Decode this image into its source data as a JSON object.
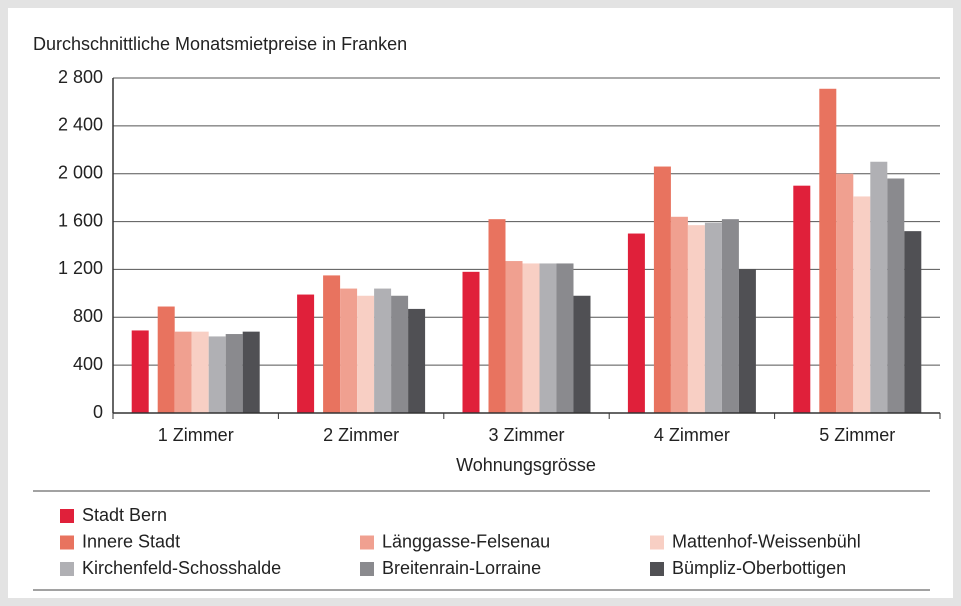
{
  "chart_data": {
    "type": "bar",
    "title": "Durchschnittliche Monatsmietpreise in Franken",
    "x_label": "Wohnungsgrösse",
    "categories": [
      "1 Zimmer",
      "2 Zimmer",
      "3 Zimmer",
      "4 Zimmer",
      "5 Zimmer"
    ],
    "series": [
      {
        "name": "Stadt Bern",
        "color": "#e0203a",
        "values": [
          690,
          990,
          1180,
          1500,
          1900
        ]
      },
      {
        "name": "Innere Stadt",
        "color": "#e8735f",
        "values": [
          890,
          1150,
          1620,
          2060,
          2710
        ]
      },
      {
        "name": "Länggasse-Felsenau",
        "color": "#f0a090",
        "values": [
          680,
          1040,
          1270,
          1640,
          2000
        ]
      },
      {
        "name": "Mattenhof-Weissenbühl",
        "color": "#f8cfc4",
        "values": [
          680,
          980,
          1250,
          1570,
          1810
        ]
      },
      {
        "name": "Kirchenfeld-Schosshalde",
        "color": "#b0b0b4",
        "values": [
          640,
          1040,
          1250,
          1590,
          2100
        ]
      },
      {
        "name": "Breitenrain-Lorraine",
        "color": "#8a8a8e",
        "values": [
          660,
          980,
          1250,
          1620,
          1960
        ]
      },
      {
        "name": "Bümpliz-Oberbottigen",
        "color": "#505054",
        "values": [
          680,
          870,
          980,
          1200,
          1520
        ]
      }
    ],
    "ylim": [
      0,
      2800
    ],
    "yticks": [
      0,
      400,
      800,
      {
        "value": 1200,
        "label": "1 200"
      },
      {
        "value": 1600,
        "label": "1 600"
      },
      {
        "value": 2000,
        "label": "2 000"
      },
      {
        "value": 2400,
        "label": "2 400"
      },
      {
        "value": 2800,
        "label": "2 800"
      }
    ],
    "grid": true
  }
}
